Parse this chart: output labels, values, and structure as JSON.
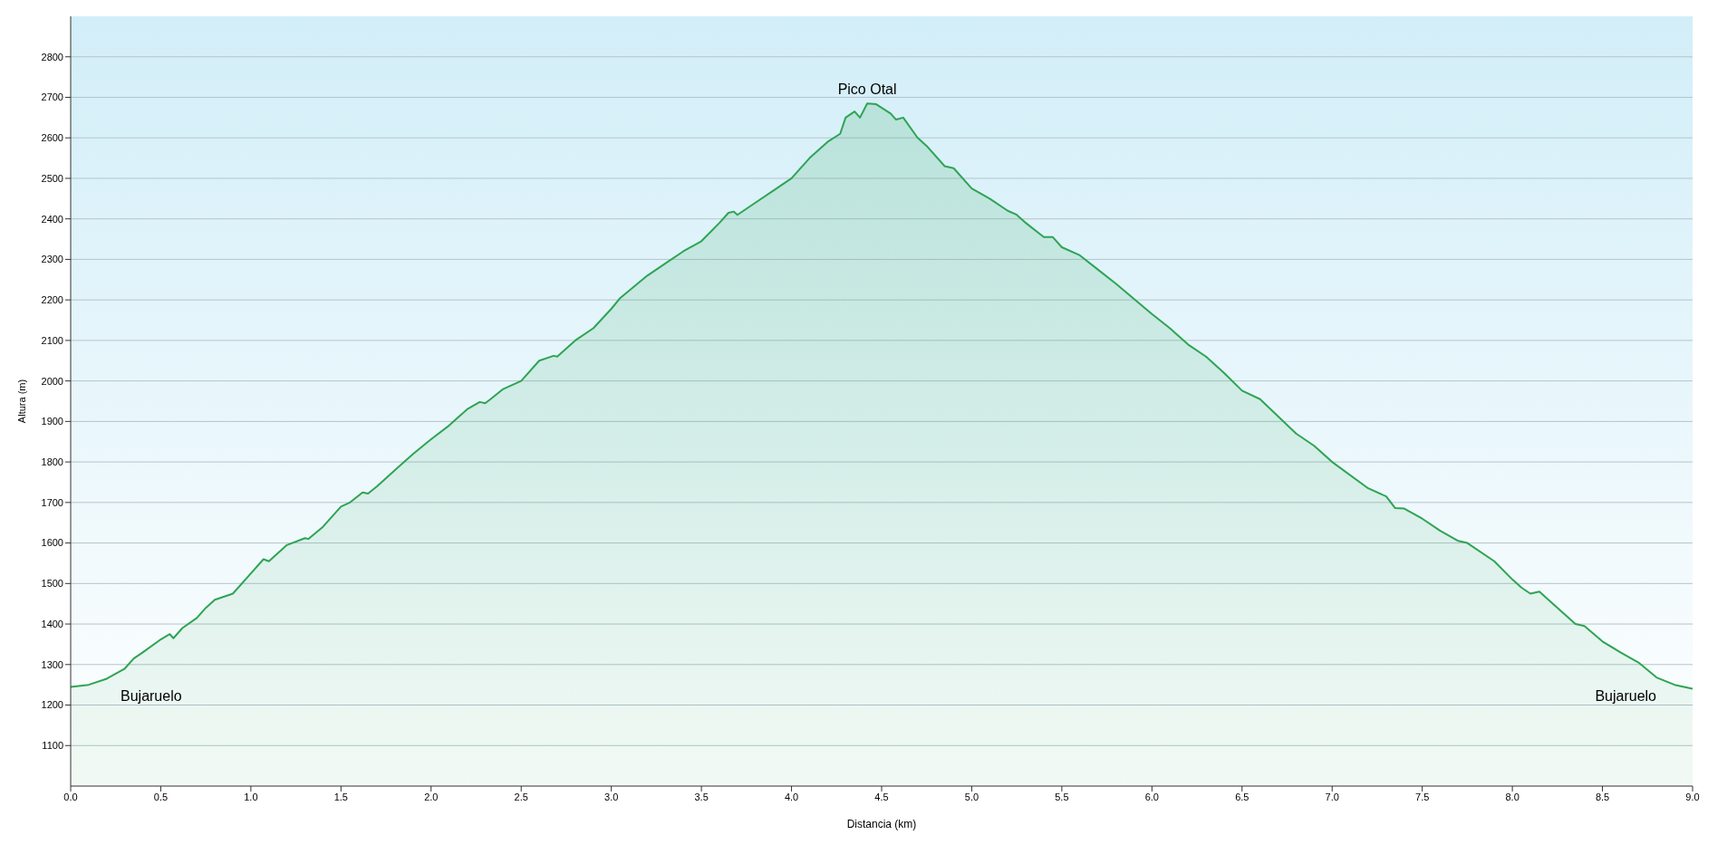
{
  "chart_data": {
    "type": "area",
    "xlabel": "Distancia (km)",
    "ylabel": "Altura (m)",
    "xlim": [
      0,
      9
    ],
    "xticks": [
      {
        "value": 0,
        "label": "0.0"
      },
      {
        "value": 0.5,
        "label": "0.5"
      },
      {
        "value": 1,
        "label": "1.0"
      },
      {
        "value": 1.5,
        "label": "1.5"
      },
      {
        "value": 2,
        "label": "2.0"
      },
      {
        "value": 2.5,
        "label": "2.5"
      },
      {
        "value": 3,
        "label": "3.0"
      },
      {
        "value": 3.5,
        "label": "3.5"
      },
      {
        "value": 4,
        "label": "4.0"
      },
      {
        "value": 4.5,
        "label": "4.5"
      },
      {
        "value": 5,
        "label": "5.0"
      },
      {
        "value": 5.5,
        "label": "5.5"
      },
      {
        "value": 6,
        "label": "6.0"
      },
      {
        "value": 6.5,
        "label": "6.5"
      },
      {
        "value": 7,
        "label": "7.0"
      },
      {
        "value": 7.5,
        "label": "7.5"
      },
      {
        "value": 8,
        "label": "8.0"
      },
      {
        "value": 8.5,
        "label": "8.5"
      },
      {
        "value": 9,
        "label": "9.0"
      }
    ],
    "ylim": [
      1000,
      2900
    ],
    "yticks": [
      1100,
      1200,
      1300,
      1400,
      1500,
      1600,
      1700,
      1800,
      1900,
      2000,
      2100,
      2200,
      2300,
      2400,
      2500,
      2600,
      2700,
      2800
    ],
    "grid": "y",
    "marker": "none",
    "x": [
      0,
      0.1,
      0.2,
      0.3,
      0.35,
      0.4,
      0.5,
      0.55,
      0.57,
      0.62,
      0.7,
      0.75,
      0.8,
      0.9,
      1.0,
      1.07,
      1.1,
      1.2,
      1.3,
      1.32,
      1.4,
      1.5,
      1.55,
      1.62,
      1.65,
      1.7,
      1.8,
      1.9,
      2.0,
      2.1,
      2.2,
      2.27,
      2.3,
      2.33,
      2.4,
      2.5,
      2.6,
      2.68,
      2.7,
      2.8,
      2.9,
      3.0,
      3.05,
      3.2,
      3.3,
      3.4,
      3.5,
      3.6,
      3.65,
      3.68,
      3.7,
      3.8,
      3.9,
      4.0,
      4.1,
      4.2,
      4.27,
      4.3,
      4.35,
      4.38,
      4.42,
      4.47,
      4.55,
      4.58,
      4.62,
      4.7,
      4.75,
      4.85,
      4.9,
      5.0,
      5.1,
      5.2,
      5.25,
      5.3,
      5.4,
      5.45,
      5.5,
      5.6,
      5.7,
      5.8,
      6.0,
      6.1,
      6.2,
      6.3,
      6.4,
      6.5,
      6.6,
      6.8,
      6.9,
      7.0,
      7.2,
      7.3,
      7.35,
      7.4,
      7.5,
      7.6,
      7.7,
      7.75,
      7.9,
      8.0,
      8.05,
      8.1,
      8.15,
      8.2,
      8.35,
      8.4,
      8.5,
      8.6,
      8.7,
      8.8,
      8.9,
      9.0
    ],
    "series": [
      {
        "color": "#2ea454",
        "values": [
          1245,
          1250,
          1265,
          1290,
          1315,
          1330,
          1362,
          1375,
          1365,
          1390,
          1415,
          1440,
          1460,
          1475,
          1525,
          1560,
          1555,
          1595,
          1612,
          1610,
          1640,
          1690,
          1700,
          1725,
          1722,
          1740,
          1780,
          1820,
          1856,
          1890,
          1930,
          1948,
          1945,
          1955,
          1980,
          2000,
          2050,
          2062,
          2060,
          2100,
          2130,
          2178,
          2205,
          2260,
          2290,
          2320,
          2345,
          2390,
          2415,
          2418,
          2410,
          2440,
          2470,
          2500,
          2550,
          2590,
          2610,
          2650,
          2665,
          2650,
          2685,
          2683,
          2660,
          2645,
          2650,
          2600,
          2580,
          2530,
          2525,
          2475,
          2450,
          2420,
          2410,
          2390,
          2355,
          2355,
          2330,
          2310,
          2275,
          2240,
          2165,
          2130,
          2090,
          2060,
          2020,
          1976,
          1955,
          1870,
          1840,
          1800,
          1735,
          1715,
          1686,
          1685,
          1660,
          1630,
          1605,
          1600,
          1555,
          1510,
          1490,
          1475,
          1480,
          1460,
          1400,
          1395,
          1357,
          1330,
          1305,
          1268,
          1250,
          1240
        ]
      }
    ],
    "annotations": [
      "Bujaruelo",
      {
        "text": "Pico Otal",
        "x": 4.42,
        "y": 2685
      },
      "Bujaruelo"
    ]
  }
}
